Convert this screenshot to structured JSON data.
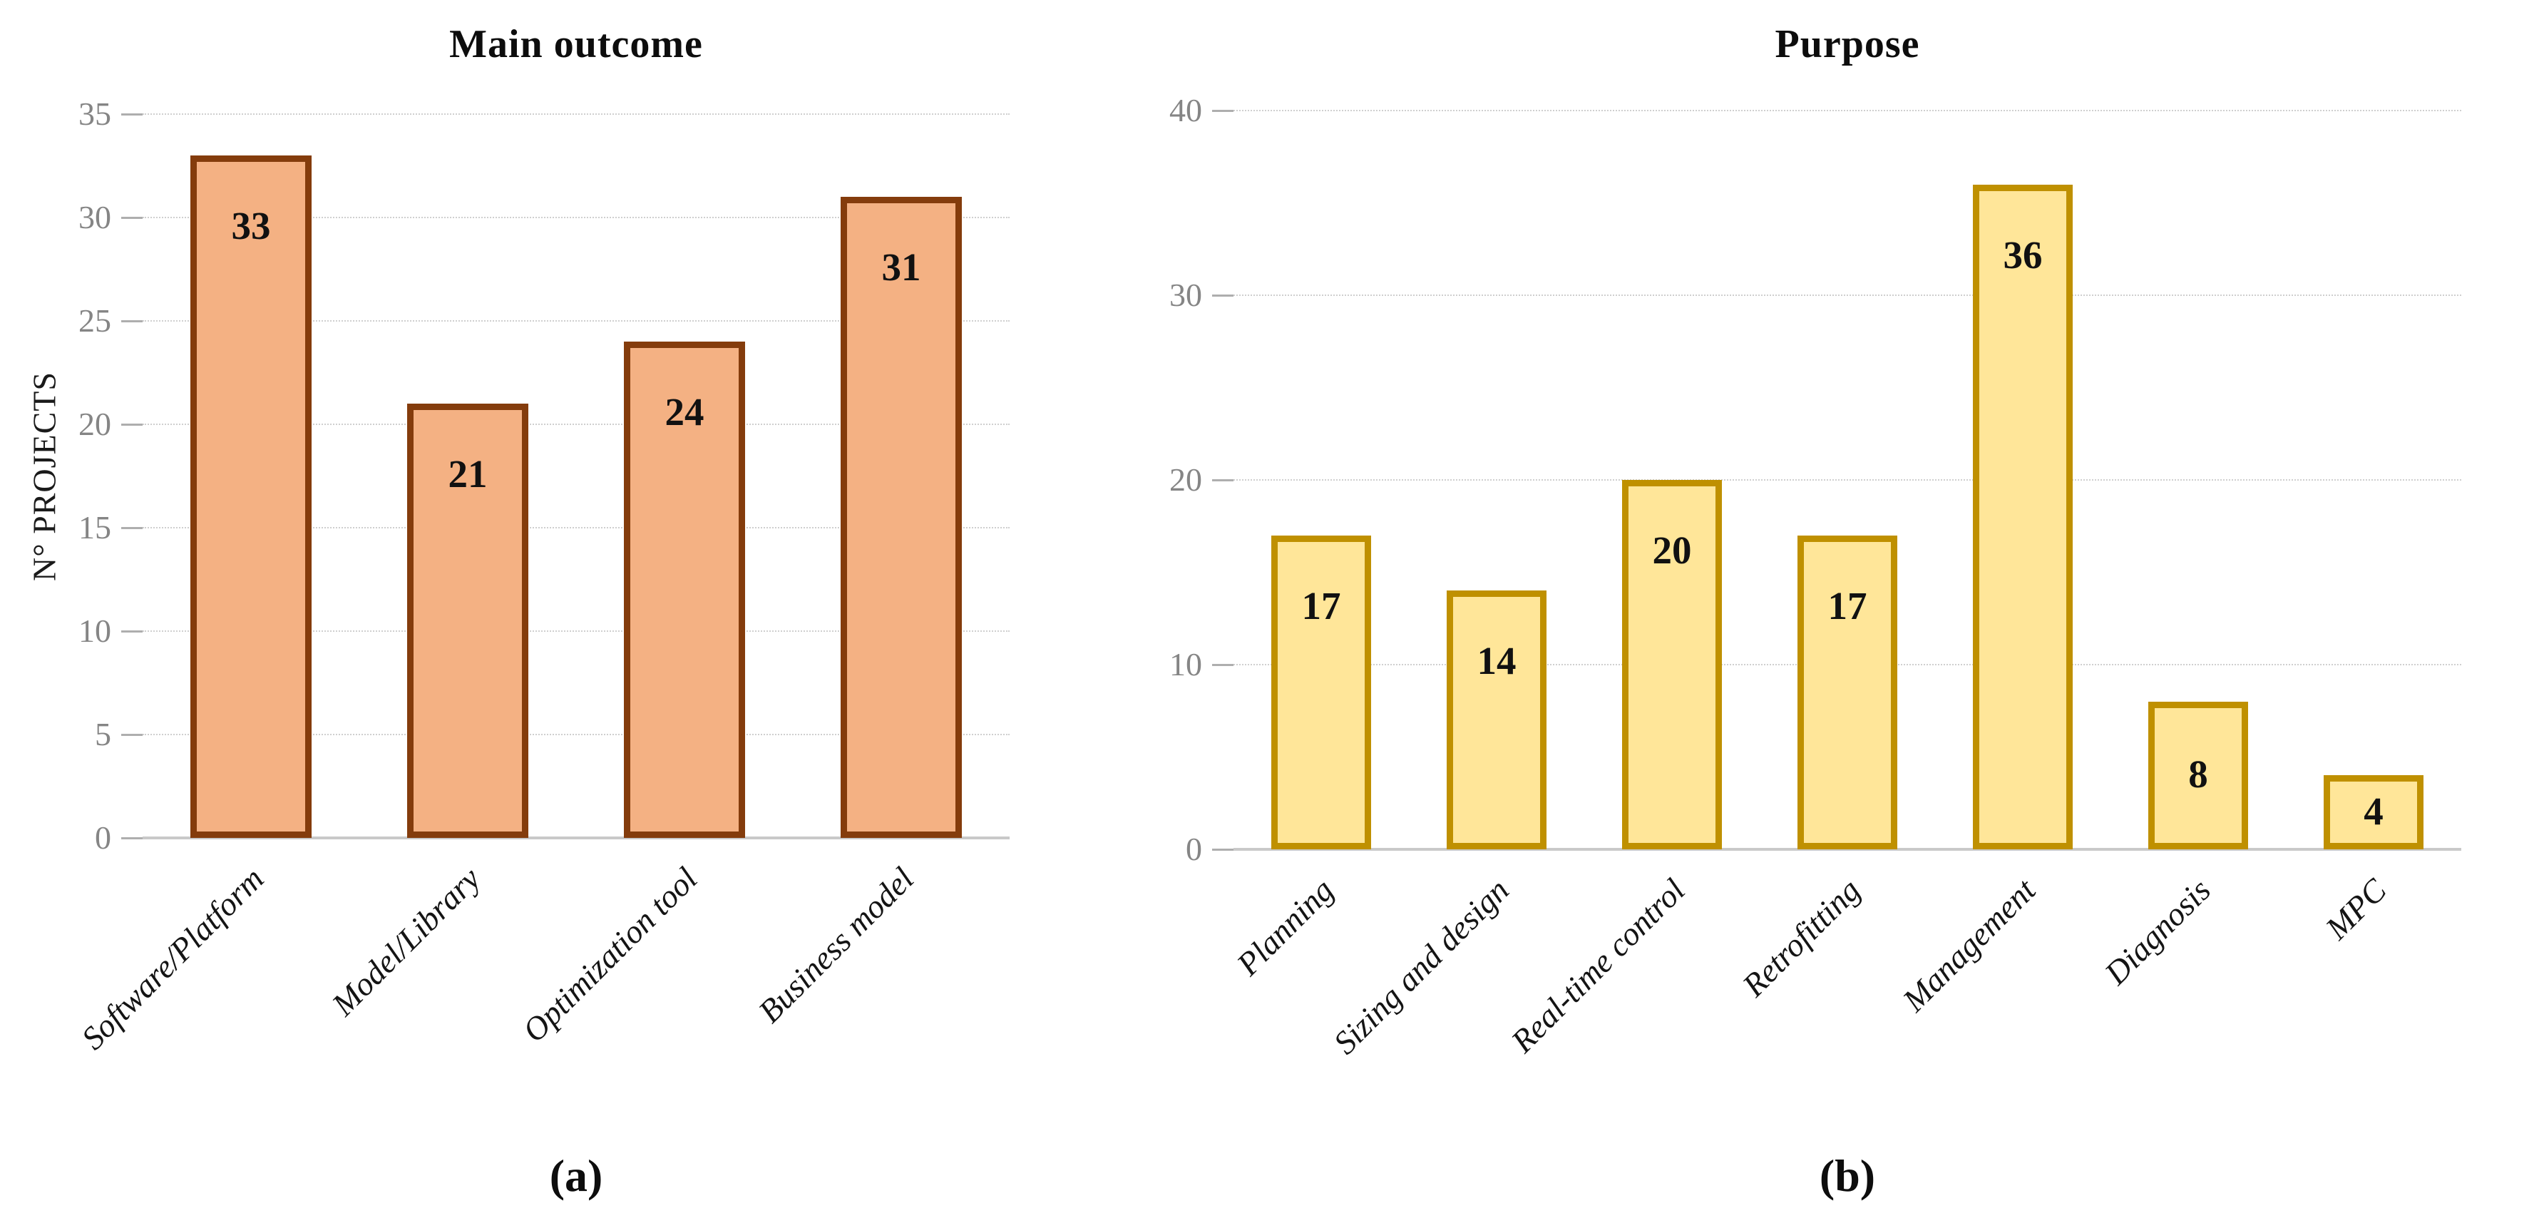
{
  "chart_data": [
    {
      "type": "bar",
      "title": "Main outcome",
      "ylabel": "N° PROJECTS",
      "xlabel": "",
      "caption": "(a)",
      "categories": [
        "Software/Platform",
        "Model/Library",
        "Optimization tool",
        "Business model"
      ],
      "values": [
        33,
        21,
        24,
        31
      ],
      "yticks": [
        0,
        5,
        10,
        15,
        20,
        25,
        30,
        35
      ],
      "ylim": [
        0,
        35
      ],
      "grid": "horizontal",
      "legend_position": "none",
      "bar_fill": "#F4B183",
      "bar_border": "#843C0C"
    },
    {
      "type": "bar",
      "title": "Purpose",
      "ylabel": "",
      "xlabel": "",
      "caption": "(b)",
      "categories": [
        "Planning",
        "Sizing and design",
        "Real-time control",
        "Retrofitting",
        "Management",
        "Diagnosis",
        "MPC"
      ],
      "values": [
        17,
        14,
        20,
        17,
        36,
        8,
        4
      ],
      "yticks": [
        0,
        10,
        20,
        30,
        40
      ],
      "ylim": [
        0,
        40
      ],
      "grid": "horizontal",
      "legend_position": "none",
      "bar_fill": "#FFE699",
      "bar_border": "#BF9000"
    }
  ],
  "colors": {
    "background": "#FFFFFF",
    "gridline": "#CFCFCF",
    "axis_baseline": "#C9C9C9",
    "tick_label": "#858585",
    "value_label": "#111111"
  }
}
